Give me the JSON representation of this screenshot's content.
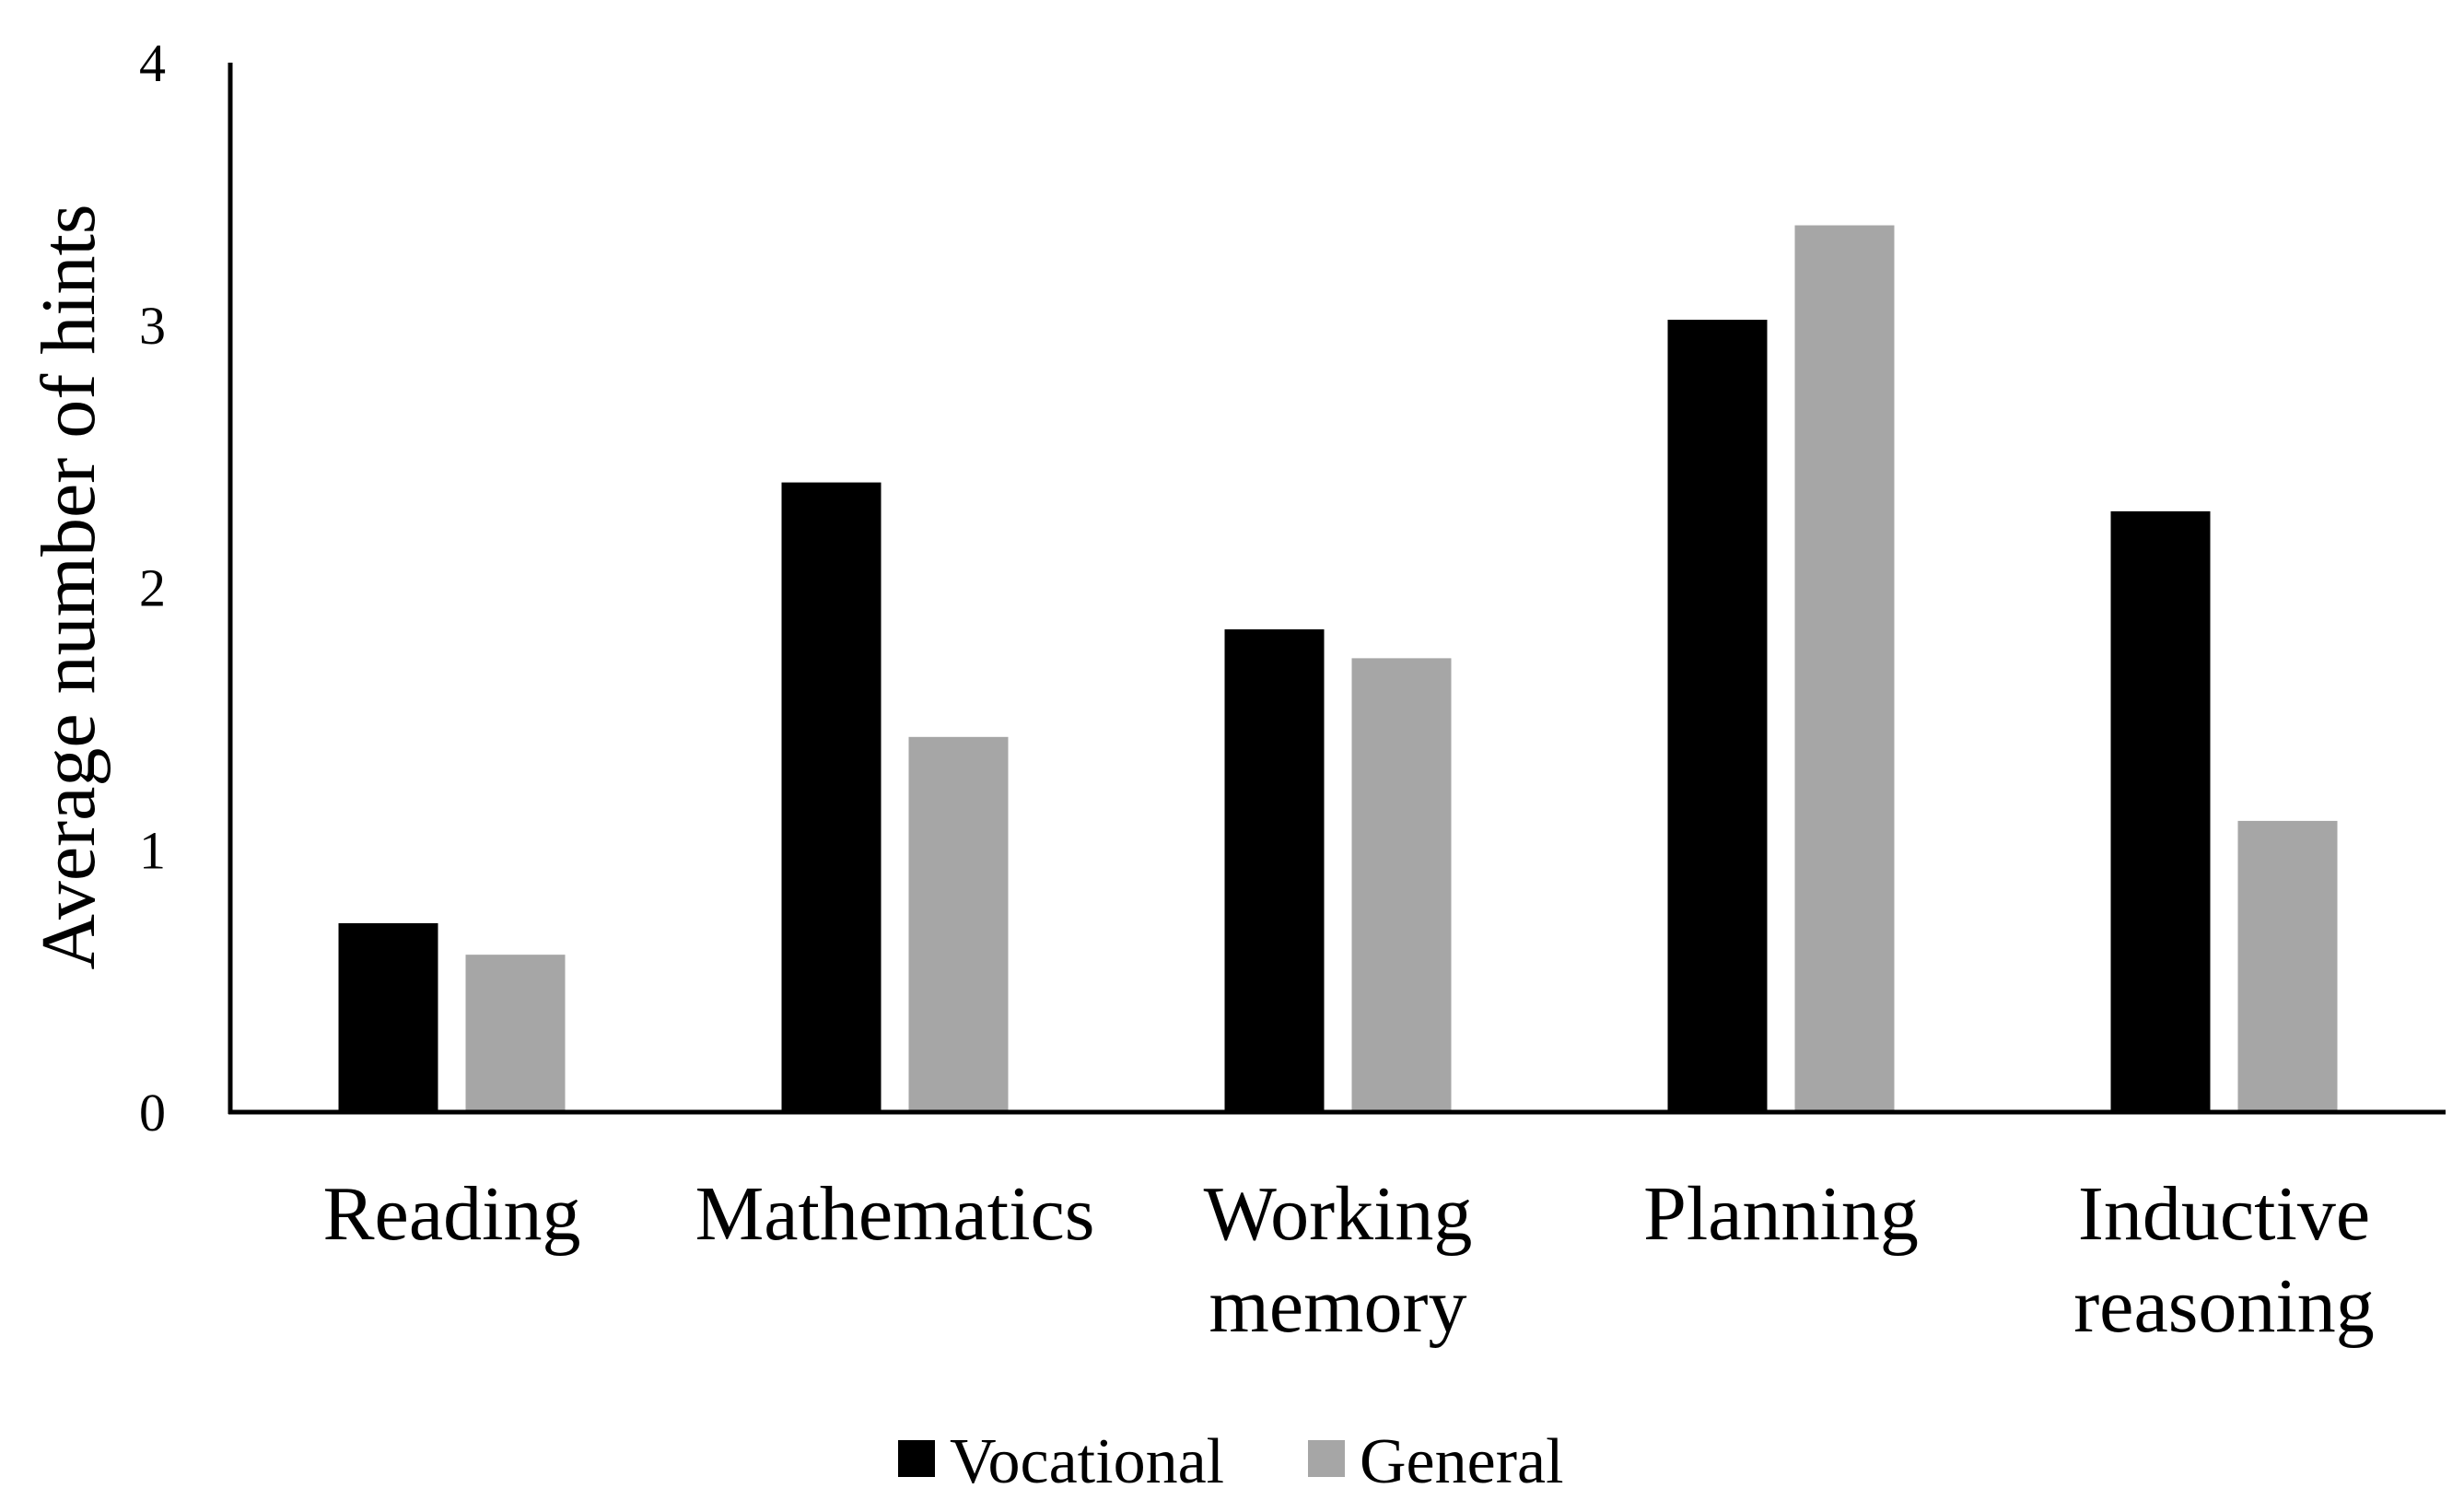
{
  "chart_data": {
    "type": "bar",
    "title": "",
    "xlabel": "",
    "ylabel": "Average number of hints",
    "ylim": [
      0,
      4
    ],
    "yticks": [
      "0",
      "1",
      "2",
      "3",
      "4"
    ],
    "grid": false,
    "legend_position": "bottom",
    "categories": [
      [
        "Reading"
      ],
      [
        "Mathematics"
      ],
      [
        "Working",
        "memory"
      ],
      [
        "Planning"
      ],
      [
        "Inductive",
        "reasoning"
      ]
    ],
    "series": [
      {
        "name": "Vocational",
        "color": "#000000",
        "values": [
          0.72,
          2.4,
          1.84,
          3.02,
          2.29
        ]
      },
      {
        "name": "General",
        "color": "#a6a6a6",
        "values": [
          0.6,
          1.43,
          1.73,
          3.38,
          1.11
        ]
      }
    ]
  }
}
